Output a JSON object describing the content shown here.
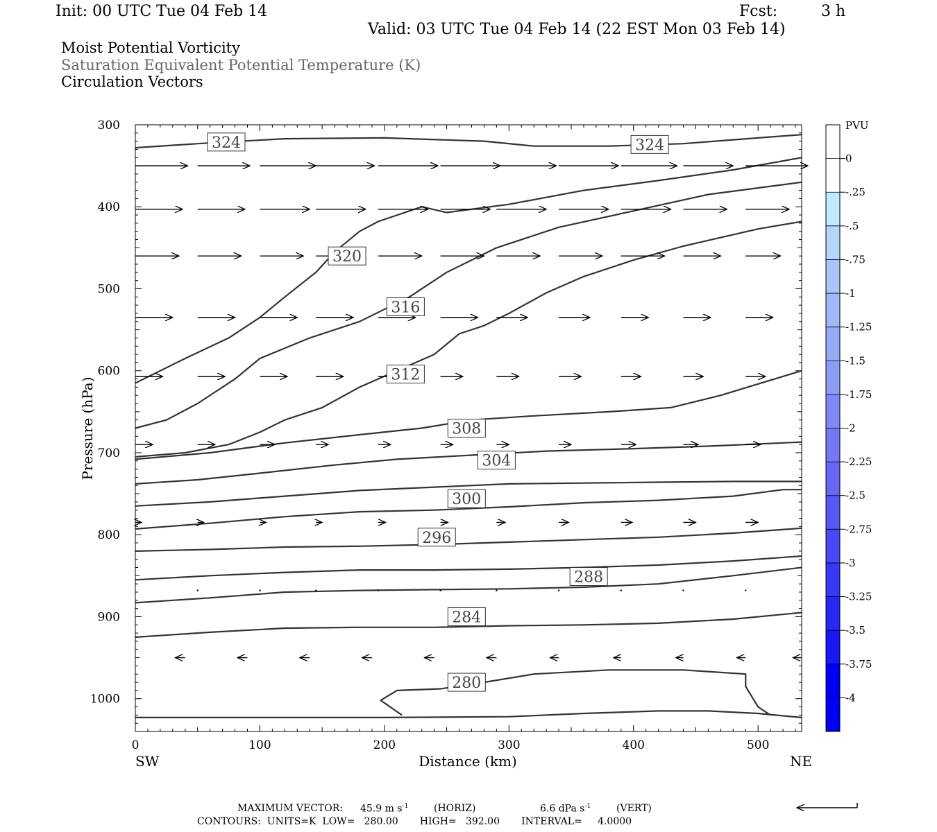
{
  "header": {
    "init": "Init: 00 UTC Tue 04 Feb 14",
    "fcst_label": "Fcst:",
    "fcst_value": "3 h",
    "valid": "Valid: 03 UTC Tue 04 Feb 14 (22 EST Mon 03 Feb 14)",
    "field1": "Moist Potential Vorticity",
    "field2": "Saturation Equivalent Potential Temperature (K)",
    "field3": "Circulation Vectors"
  },
  "chart_data": {
    "type": "cross-section",
    "xlabel": "Distance (km)",
    "ylabel": "Pressure (hPa)",
    "xlim": [
      0,
      535
    ],
    "ylim": [
      1040,
      300
    ],
    "y_log": false,
    "x_ticks": [
      0,
      100,
      200,
      300,
      400,
      500
    ],
    "y_ticks": [
      300,
      400,
      500,
      600,
      700,
      800,
      900,
      1000
    ],
    "left_end_label": "SW",
    "right_end_label": "NE",
    "contours": [
      {
        "label": "324",
        "label_at": [
          73,
          321
        ],
        "points": [
          [
            0,
            328
          ],
          [
            50,
            323
          ],
          [
            120,
            317
          ],
          [
            200,
            316
          ],
          [
            280,
            320
          ],
          [
            320,
            326
          ],
          [
            380,
            326
          ],
          [
            440,
            323
          ],
          [
            500,
            316
          ],
          [
            535,
            312
          ]
        ]
      },
      {
        "label": "324",
        "label_at": [
          413,
          324
        ],
        "points": [
          [
            250,
            407
          ],
          [
            300,
            397
          ],
          [
            360,
            380
          ],
          [
            420,
            368
          ],
          [
            480,
            355
          ],
          [
            535,
            340
          ]
        ]
      },
      {
        "label": "320",
        "label_at": [
          170,
          460
        ],
        "points": [
          [
            0,
            615
          ],
          [
            40,
            585
          ],
          [
            75,
            560
          ],
          [
            100,
            535
          ],
          [
            120,
            510
          ],
          [
            145,
            480
          ],
          [
            160,
            455
          ],
          [
            180,
            430
          ],
          [
            195,
            418
          ],
          [
            230,
            400
          ],
          [
            250,
            407
          ]
        ]
      },
      {
        "label": "316",
        "label_at": [
          217,
          522
        ],
        "points": [
          [
            0,
            670
          ],
          [
            25,
            660
          ],
          [
            50,
            640
          ],
          [
            80,
            610
          ],
          [
            100,
            585
          ],
          [
            140,
            560
          ],
          [
            180,
            540
          ],
          [
            220,
            510
          ],
          [
            250,
            480
          ],
          [
            290,
            450
          ],
          [
            340,
            425
          ],
          [
            400,
            405
          ],
          [
            460,
            385
          ],
          [
            535,
            370
          ]
        ]
      },
      {
        "label": "312",
        "label_at": [
          217,
          604
        ],
        "points": [
          [
            0,
            705
          ],
          [
            40,
            700
          ],
          [
            75,
            690
          ],
          [
            100,
            675
          ],
          [
            120,
            660
          ],
          [
            150,
            645
          ],
          [
            180,
            620
          ],
          [
            210,
            600
          ],
          [
            240,
            580
          ],
          [
            260,
            555
          ],
          [
            280,
            545
          ],
          [
            300,
            530
          ],
          [
            330,
            505
          ],
          [
            360,
            485
          ],
          [
            400,
            465
          ],
          [
            440,
            448
          ],
          [
            500,
            427
          ],
          [
            535,
            418
          ]
        ]
      },
      {
        "label": "308",
        "label_at": [
          266,
          670
        ],
        "points": [
          [
            0,
            708
          ],
          [
            60,
            700
          ],
          [
            120,
            688
          ],
          [
            180,
            678
          ],
          [
            230,
            670
          ],
          [
            270,
            660
          ],
          [
            320,
            655
          ],
          [
            380,
            650
          ],
          [
            430,
            645
          ],
          [
            470,
            630
          ],
          [
            535,
            600
          ]
        ]
      },
      {
        "label": "304",
        "label_at": [
          290,
          709
        ],
        "points": [
          [
            0,
            738
          ],
          [
            50,
            733
          ],
          [
            100,
            725
          ],
          [
            160,
            715
          ],
          [
            210,
            708
          ],
          [
            270,
            703
          ],
          [
            330,
            698
          ],
          [
            400,
            695
          ],
          [
            460,
            692
          ],
          [
            535,
            687
          ]
        ]
      },
      {
        "label": "300",
        "label_at": [
          266,
          756
        ],
        "points": [
          [
            0,
            765
          ],
          [
            60,
            760
          ],
          [
            120,
            753
          ],
          [
            180,
            746
          ],
          [
            240,
            742
          ],
          [
            300,
            738
          ],
          [
            360,
            737
          ],
          [
            420,
            736
          ],
          [
            480,
            735
          ],
          [
            535,
            735
          ]
        ]
      },
      {
        "label": "296",
        "label_at": [
          242,
          803
        ],
        "points": [
          [
            0,
            793
          ],
          [
            60,
            786
          ],
          [
            120,
            778
          ],
          [
            180,
            772
          ],
          [
            240,
            770
          ],
          [
            300,
            766
          ],
          [
            360,
            761
          ],
          [
            420,
            758
          ],
          [
            480,
            753
          ],
          [
            520,
            745
          ],
          [
            535,
            745
          ]
        ]
      },
      {
        "label": "",
        "label_at": null,
        "points": [
          [
            0,
            820
          ],
          [
            60,
            818
          ],
          [
            120,
            815
          ],
          [
            180,
            814
          ],
          [
            240,
            812
          ],
          [
            300,
            809
          ],
          [
            360,
            806
          ],
          [
            420,
            803
          ],
          [
            480,
            798
          ],
          [
            535,
            792
          ]
        ]
      },
      {
        "label": "288",
        "label_at": [
          364,
          851
        ],
        "points": [
          [
            0,
            855
          ],
          [
            60,
            850
          ],
          [
            120,
            846
          ],
          [
            180,
            843
          ],
          [
            240,
            843
          ],
          [
            300,
            842
          ],
          [
            360,
            840
          ],
          [
            420,
            837
          ],
          [
            480,
            832
          ],
          [
            535,
            826
          ]
        ]
      },
      {
        "label": "",
        "label_at": null,
        "points": [
          [
            0,
            883
          ],
          [
            60,
            877
          ],
          [
            120,
            870
          ],
          [
            180,
            868
          ],
          [
            240,
            867
          ],
          [
            300,
            866
          ],
          [
            360,
            864
          ],
          [
            420,
            860
          ],
          [
            480,
            850
          ],
          [
            535,
            840
          ]
        ]
      },
      {
        "label": "284",
        "label_at": [
          266,
          900
        ],
        "points": [
          [
            0,
            925
          ],
          [
            60,
            919
          ],
          [
            120,
            914
          ],
          [
            180,
            913
          ],
          [
            240,
            913
          ],
          [
            300,
            911
          ],
          [
            360,
            910
          ],
          [
            420,
            908
          ],
          [
            480,
            903
          ],
          [
            535,
            895
          ]
        ]
      },
      {
        "label": "280",
        "label_at": [
          266,
          980
        ],
        "points": [
          [
            214,
            1020
          ],
          [
            197,
            1002
          ],
          [
            210,
            990
          ],
          [
            245,
            988
          ],
          [
            280,
            980
          ],
          [
            320,
            970
          ],
          [
            380,
            965
          ],
          [
            440,
            965
          ],
          [
            490,
            970
          ],
          [
            490,
            985
          ],
          [
            500,
            1010
          ],
          [
            510,
            1020
          ]
        ]
      },
      {
        "label": "",
        "label_at": null,
        "points": [
          [
            0,
            1023
          ],
          [
            100,
            1023
          ],
          [
            200,
            1023
          ],
          [
            300,
            1022
          ],
          [
            360,
            1018
          ],
          [
            420,
            1015
          ],
          [
            460,
            1015
          ],
          [
            500,
            1018
          ],
          [
            535,
            1023
          ]
        ]
      }
    ],
    "vectors": [
      {
        "p": 350,
        "x": [
          0,
          50,
          100,
          145,
          195,
          245,
          290,
          340,
          390,
          440,
          490
        ],
        "dx": [
          42,
          42,
          45,
          47,
          48,
          48,
          48,
          48,
          45,
          40,
          50
        ]
      },
      {
        "p": 403,
        "x": [
          0,
          50,
          100,
          145,
          195,
          245,
          290,
          340,
          390,
          440,
          490
        ],
        "dx": [
          38,
          38,
          40,
          40,
          40,
          40,
          40,
          40,
          40,
          35,
          35
        ]
      },
      {
        "p": 460,
        "x": [
          0,
          50,
          100,
          145,
          195,
          245,
          290,
          340,
          390,
          440,
          490
        ],
        "dx": [
          35,
          35,
          35,
          35,
          35,
          35,
          35,
          35,
          35,
          30,
          28
        ]
      },
      {
        "p": 535,
        "x": [
          0,
          50,
          100,
          145,
          195,
          245,
          290,
          340,
          390,
          440,
          490
        ],
        "dx": [
          30,
          30,
          30,
          30,
          30,
          30,
          25,
          25,
          22,
          22,
          22
        ]
      },
      {
        "p": 607,
        "x": [
          0,
          50,
          100,
          145,
          195,
          245,
          290,
          340,
          390,
          440,
          490
        ],
        "dx": [
          22,
          22,
          22,
          22,
          22,
          18,
          18,
          18,
          16,
          16,
          16
        ]
      },
      {
        "p": 690,
        "x": [
          0,
          50,
          100,
          145,
          195,
          245,
          290,
          340,
          390,
          440,
          490
        ],
        "dx": [
          14,
          14,
          12,
          10,
          10,
          10,
          10,
          10,
          12,
          12,
          12
        ]
      },
      {
        "p": 785,
        "x": [
          0,
          50,
          100,
          145,
          195,
          245,
          290,
          340,
          390,
          440,
          490
        ],
        "dx": [
          5,
          5,
          5,
          5,
          6,
          6,
          7,
          8,
          9,
          10,
          10
        ]
      },
      {
        "p": 868,
        "x": [
          50,
          100,
          145,
          195,
          245,
          290,
          340,
          390,
          440,
          490
        ],
        "dx": [
          1,
          1,
          1,
          1,
          1,
          1,
          1,
          1,
          1,
          1
        ]
      },
      {
        "p": 950,
        "x": [
          40,
          90,
          140,
          190,
          240,
          290,
          340,
          390,
          440,
          490,
          535
        ],
        "dx": [
          -8,
          -8,
          -8,
          -8,
          -8,
          -8,
          -7,
          -6,
          -6,
          -7,
          -7
        ]
      }
    ],
    "colorbar": {
      "title": "PVU",
      "labels": [
        "0",
        "-.25",
        "-.5",
        "-.75",
        "-1",
        "-1.25",
        "-1.5",
        "-1.75",
        "-2",
        "-2.25",
        "-2.5",
        "-2.75",
        "-3",
        "-3.25",
        "-3.5",
        "-3.75",
        "-4"
      ],
      "colors": [
        "#ffffff",
        "#ffffff",
        "#bfe9ff",
        "#b4d6fc",
        "#a9c4f8",
        "#a0b8f7",
        "#97aaf6",
        "#8c9cf5",
        "#8088f4",
        "#7478f4",
        "#6868f4",
        "#5858f4",
        "#4848f5",
        "#3838f5",
        "#2828f5",
        "#1818f6",
        "#0000f5",
        "#0000f5"
      ]
    }
  },
  "footer": {
    "max_vector_label": "MAXIMUM VECTOR:",
    "max_horiz": "45.9 m s",
    "horiz_tag": "(HORIZ)",
    "max_vert": "6.6 dPa s",
    "vert_tag": "(VERT)",
    "superscript": "-1",
    "contours_line": "CONTOURS:  UNITS=K  LOW=   280.00       HIGH=   392.00       INTERVAL=     4.0000"
  }
}
